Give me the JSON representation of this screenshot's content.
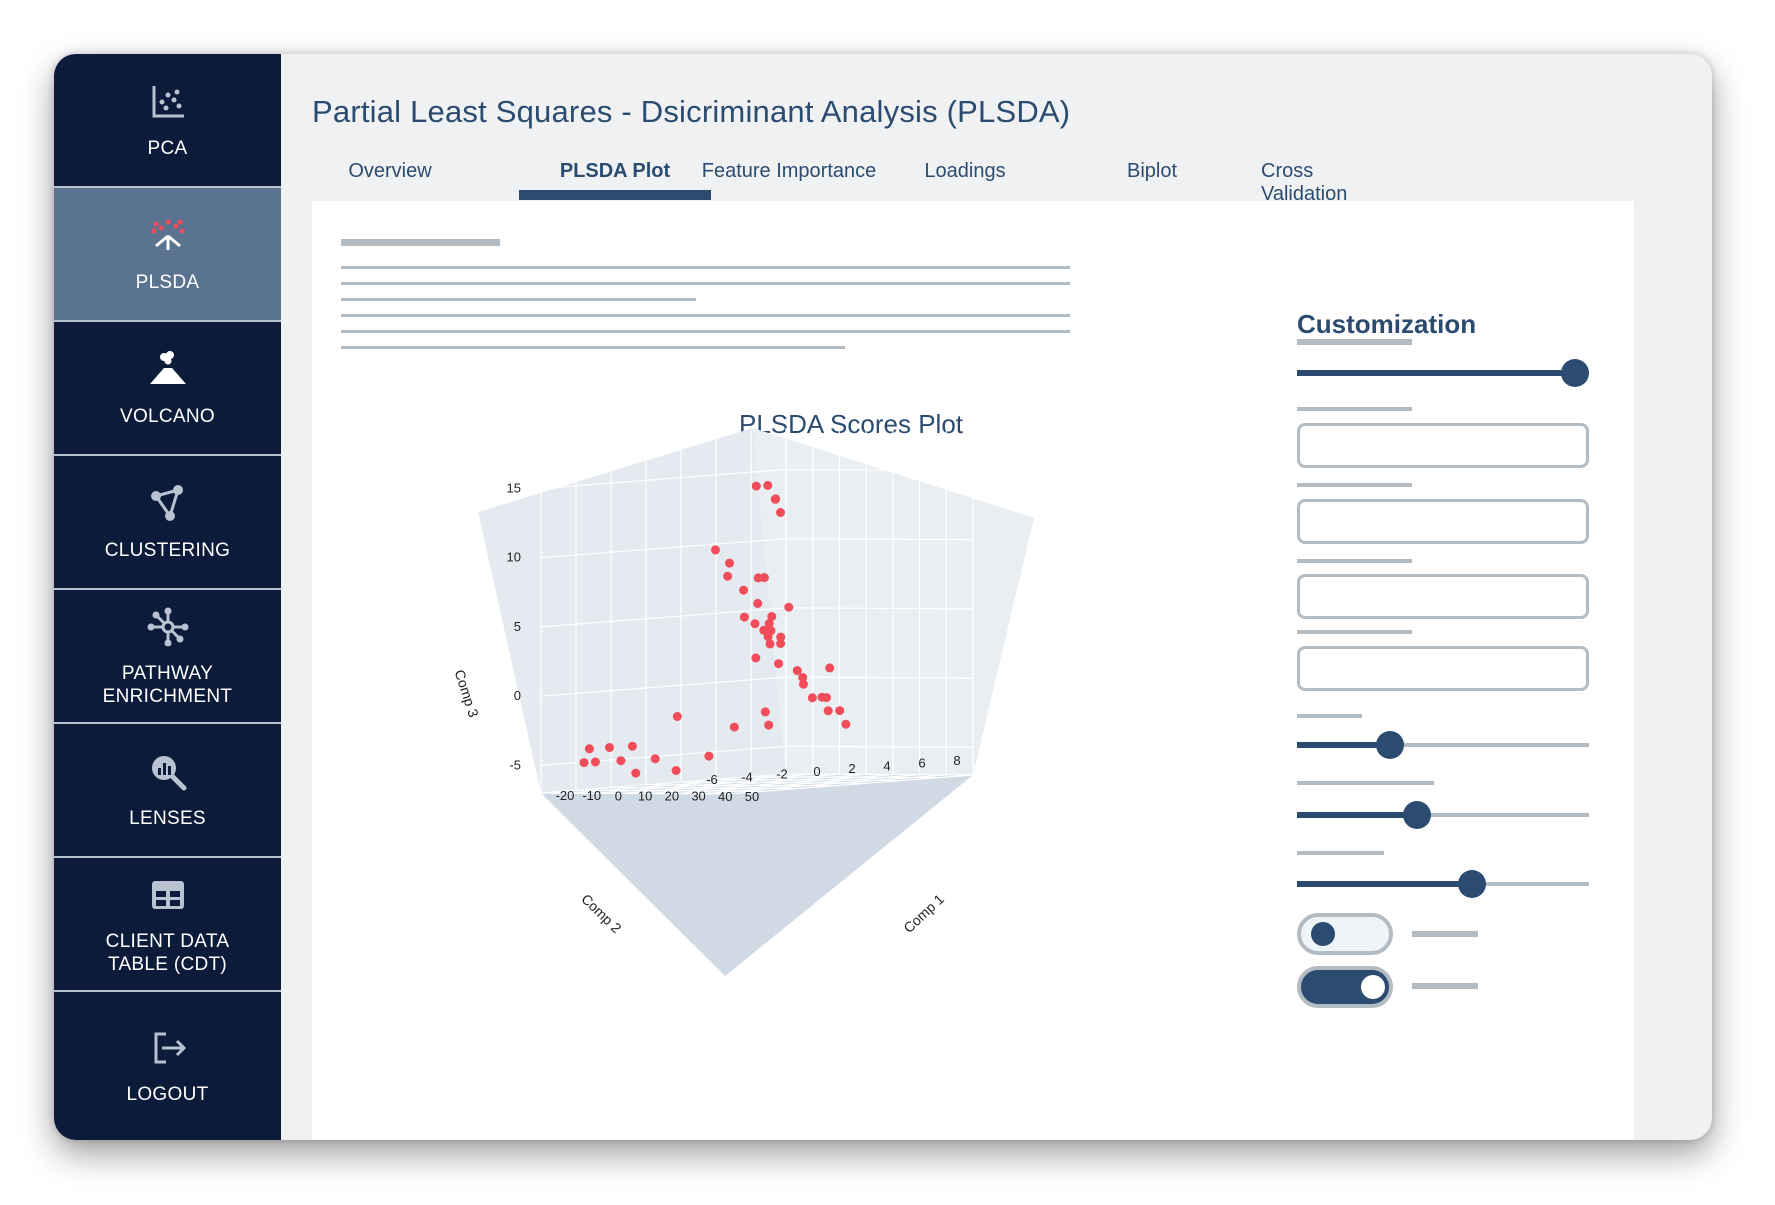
{
  "sidebar": {
    "items": [
      {
        "label": "PCA",
        "icon": "scatter-chart-icon",
        "active": false
      },
      {
        "label": "PLSDA",
        "icon": "plsda-split-icon",
        "active": true
      },
      {
        "label": "VOLCANO",
        "icon": "volcano-icon",
        "active": false
      },
      {
        "label": "CLUSTERING",
        "icon": "cluster-network-icon",
        "active": false
      },
      {
        "label": "PATHWAY\nENRICHMENT",
        "icon": "pathway-network-icon",
        "active": false
      },
      {
        "label": "LENSES",
        "icon": "magnifier-chart-icon",
        "active": false
      },
      {
        "label": "CLIENT DATA\nTABLE (CDT)",
        "icon": "table-icon",
        "active": false
      },
      {
        "label": "LOGOUT",
        "icon": "logout-icon",
        "active": false
      }
    ]
  },
  "page": {
    "title": "Partial Least Squares - Dsicriminant Analysis (PLSDA)"
  },
  "tabs": [
    {
      "label": "Overview",
      "active": false
    },
    {
      "label": "PLSDA Plot",
      "active": true
    },
    {
      "label": "Feature Importance",
      "active": false
    },
    {
      "label": "Loadings",
      "active": false
    },
    {
      "label": "Biplot",
      "active": false
    },
    {
      "label": "Cross Validation",
      "active": false
    }
  ],
  "customization": {
    "title": "Customization",
    "sliders": [
      {
        "level": 1.0
      },
      {
        "level": 0.32
      },
      {
        "level": 0.41
      },
      {
        "level": 0.6
      }
    ],
    "toggles": [
      {
        "on": false
      },
      {
        "on": true
      }
    ]
  },
  "colors": {
    "navy": "#0d1b3a",
    "active_nav": "#5a7390",
    "accent": "#2b4c70",
    "point": "#f04c5a",
    "placeholder": "#b3bbc3"
  },
  "chart_data": {
    "type": "scatter",
    "title": "PLSDA Scores Plot",
    "axes": {
      "x": {
        "label": "Comp 1",
        "ticks": [
          "-20",
          "-10",
          "0",
          "10",
          "20",
          "30",
          "40",
          "50"
        ]
      },
      "y": {
        "label": "Comp 2",
        "ticks": [
          "-6",
          "-4",
          "-2",
          "0",
          "2",
          "4",
          "6",
          "8"
        ]
      },
      "z": {
        "label": "Comp 3",
        "ticks": [
          "-5",
          "0",
          "5",
          "10",
          "15"
        ]
      }
    },
    "points": [
      {
        "x": -18,
        "y": 6,
        "z": 14
      },
      {
        "x": -17,
        "y": 6.5,
        "z": 14
      },
      {
        "x": -16,
        "y": 6.8,
        "z": 13
      },
      {
        "x": -15.5,
        "y": 7,
        "z": 12
      },
      {
        "x": 48,
        "y": -3,
        "z": 14
      },
      {
        "x": 6,
        "y": 0,
        "z": 10
      },
      {
        "x": 8,
        "y": 0.5,
        "z": 9
      },
      {
        "x": 4,
        "y": 1,
        "z": 8
      },
      {
        "x": 10,
        "y": 1,
        "z": 7
      },
      {
        "x": 12,
        "y": 1.5,
        "z": 6
      },
      {
        "x": 22,
        "y": 0,
        "z": 8
      },
      {
        "x": 23,
        "y": 0.2,
        "z": 8
      },
      {
        "x": 7,
        "y": 1.5,
        "z": 5
      },
      {
        "x": 9,
        "y": 1.8,
        "z": 4.5
      },
      {
        "x": 11,
        "y": 2,
        "z": 4
      },
      {
        "x": 13,
        "y": 2,
        "z": 4.5
      },
      {
        "x": 14,
        "y": 2,
        "z": 5
      },
      {
        "x": 15,
        "y": 1.8,
        "z": 4
      },
      {
        "x": 12,
        "y": 2.2,
        "z": 3
      },
      {
        "x": 14,
        "y": 2.5,
        "z": 3
      },
      {
        "x": 16,
        "y": 2.2,
        "z": 3.5
      },
      {
        "x": 10,
        "y": 2.4,
        "z": 3.5
      },
      {
        "x": 17,
        "y": 3,
        "z": 1
      },
      {
        "x": 18,
        "y": 3.2,
        "z": 0
      },
      {
        "x": 19,
        "y": 3,
        "z": 0.5
      },
      {
        "x": 20,
        "y": 3.4,
        "z": -1
      },
      {
        "x": 21,
        "y": 3.8,
        "z": -1
      },
      {
        "x": 22,
        "y": 4,
        "z": -2
      },
      {
        "x": 24,
        "y": 3.6,
        "z": -1
      },
      {
        "x": 25,
        "y": 4.2,
        "z": -2
      },
      {
        "x": 26,
        "y": 4.4,
        "z": -3
      },
      {
        "x": 40,
        "y": -1,
        "z": 6
      },
      {
        "x": 16,
        "y": 5,
        "z": 1
      },
      {
        "x": 10,
        "y": 3,
        "z": 1.5
      },
      {
        "x": 8,
        "y": 2,
        "z": 2
      },
      {
        "x": -14,
        "y": -3,
        "z": -4
      },
      {
        "x": -15,
        "y": -4,
        "z": -4
      },
      {
        "x": -12,
        "y": -2,
        "z": -4
      },
      {
        "x": -17,
        "y": -4,
        "z": -5
      },
      {
        "x": -16,
        "y": -3.5,
        "z": -5
      },
      {
        "x": -13,
        "y": -2.5,
        "z": -5
      },
      {
        "x": -10,
        "y": -1,
        "z": -5
      },
      {
        "x": -14,
        "y": -1.5,
        "z": -6
      },
      {
        "x": -12,
        "y": 0.5,
        "z": -6
      },
      {
        "x": -3,
        "y": 1,
        "z": -5
      },
      {
        "x": 0,
        "y": 2,
        "z": -3
      },
      {
        "x": -5,
        "y": -0.5,
        "z": -2
      },
      {
        "x": 5,
        "y": 3,
        "z": -2
      },
      {
        "x": 3,
        "y": 3.5,
        "z": -3
      }
    ]
  }
}
